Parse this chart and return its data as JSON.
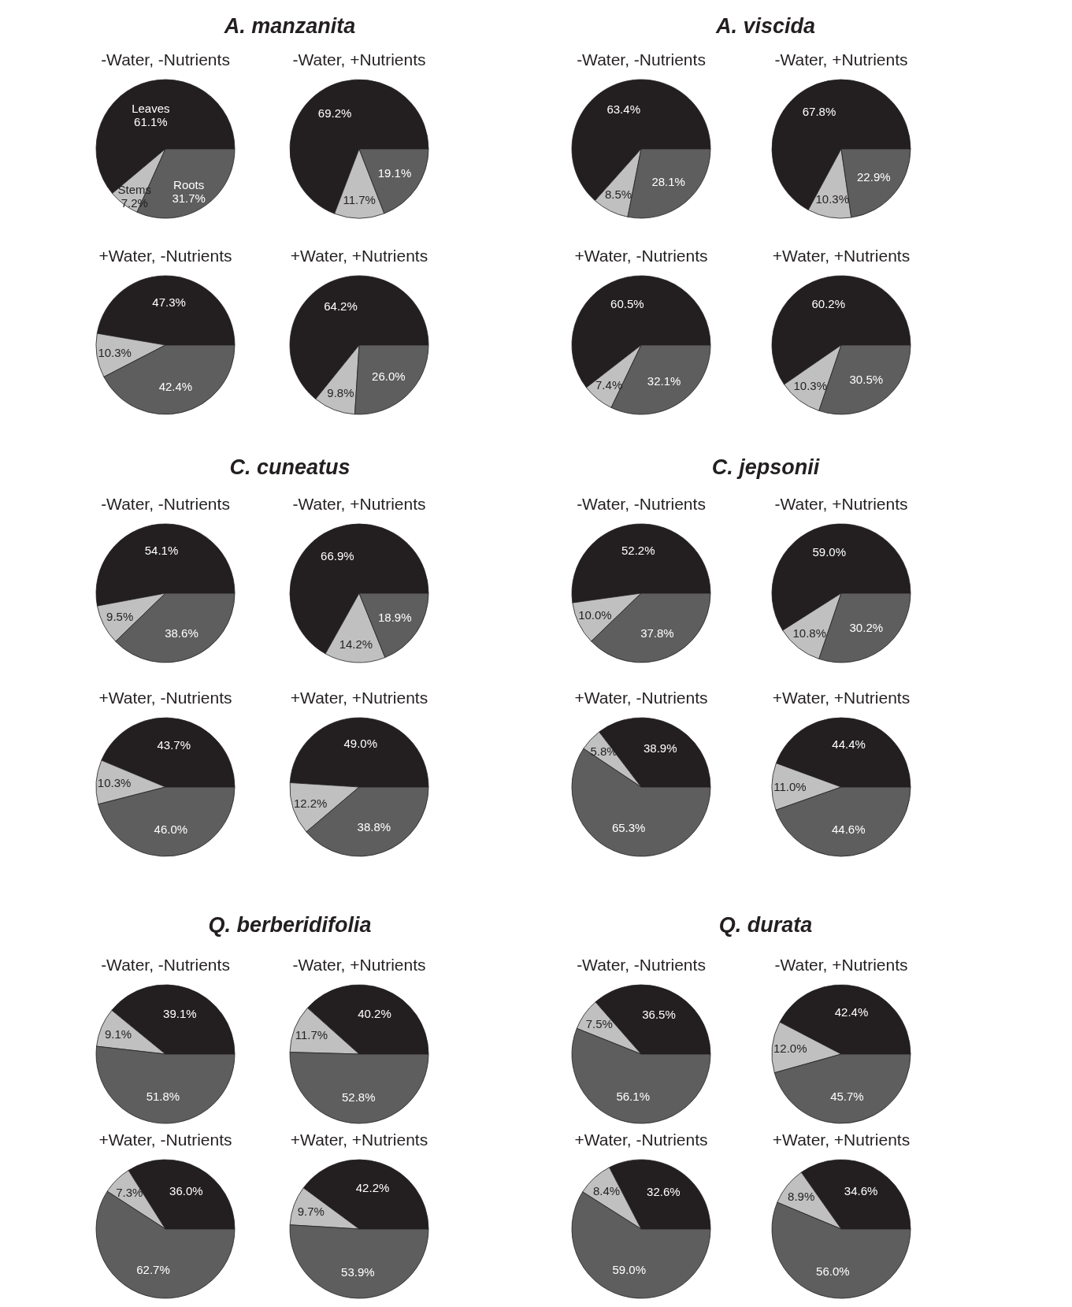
{
  "chart_data": [
    {
      "type": "pie",
      "title": "-Water, -Nutrients",
      "annotations": [
        "A. manzanita"
      ],
      "categories": [
        "Leaves",
        "Stems",
        "Roots"
      ],
      "values": [
        61.1,
        7.2,
        31.7
      ],
      "value_labels": [
        "61.1%",
        "7.2%",
        "31.7%"
      ],
      "colors": [
        "#231f20",
        "#c0c0c0",
        "#5e5e5e"
      ]
    },
    {
      "type": "pie",
      "title": "-Water, +Nutrients",
      "categories": [
        null,
        null,
        null
      ],
      "values": [
        69.2,
        11.7,
        19.1
      ],
      "value_labels": [
        "69.2%",
        "11.7%",
        "19.1%"
      ],
      "colors": [
        "#231f20",
        "#c0c0c0",
        "#5e5e5e"
      ]
    },
    {
      "type": "pie",
      "title": "+Water, -Nutrients",
      "categories": [
        null,
        null,
        null
      ],
      "values": [
        47.3,
        10.3,
        42.4
      ],
      "value_labels": [
        "47.3%",
        "10.3%",
        "42.4%"
      ],
      "colors": [
        "#231f20",
        "#c0c0c0",
        "#5e5e5e"
      ]
    },
    {
      "type": "pie",
      "title": "+Water, +Nutrients",
      "categories": [
        null,
        null,
        null
      ],
      "values": [
        64.2,
        9.8,
        26.0
      ],
      "value_labels": [
        "64.2%",
        "9.8%",
        "26.0%"
      ],
      "colors": [
        "#231f20",
        "#c0c0c0",
        "#5e5e5e"
      ]
    },
    {
      "type": "pie",
      "title": "-Water, -Nutrients",
      "annotations": [
        "A. viscida"
      ],
      "categories": [
        null,
        null,
        null
      ],
      "values": [
        63.4,
        8.5,
        28.1
      ],
      "value_labels": [
        "63.4%",
        "8.5%",
        "28.1%"
      ],
      "colors": [
        "#231f20",
        "#c0c0c0",
        "#5e5e5e"
      ]
    },
    {
      "type": "pie",
      "title": "-Water, +Nutrients",
      "categories": [
        null,
        null,
        null
      ],
      "values": [
        67.8,
        10.3,
        22.9
      ],
      "value_labels": [
        "67.8%",
        "10.3%",
        "22.9%"
      ],
      "colors": [
        "#231f20",
        "#c0c0c0",
        "#5e5e5e"
      ]
    },
    {
      "type": "pie",
      "title": "+Water, -Nutrients",
      "categories": [
        null,
        null,
        null
      ],
      "values": [
        60.5,
        7.4,
        32.1
      ],
      "value_labels": [
        "60.5%",
        "7.4%",
        "32.1%"
      ],
      "colors": [
        "#231f20",
        "#c0c0c0",
        "#5e5e5e"
      ]
    },
    {
      "type": "pie",
      "title": "+Water, +Nutrients",
      "categories": [
        null,
        null,
        null
      ],
      "values": [
        60.2,
        10.3,
        30.5
      ],
      "value_labels": [
        "60.2%",
        "10.3%",
        "30.5%"
      ],
      "colors": [
        "#231f20",
        "#c0c0c0",
        "#5e5e5e"
      ]
    },
    {
      "type": "pie",
      "title": "-Water, -Nutrients",
      "annotations": [
        "C. cuneatus"
      ],
      "categories": [
        null,
        null,
        null
      ],
      "values": [
        54.1,
        9.5,
        38.6
      ],
      "value_labels": [
        "54.1%",
        "9.5%",
        "38.6%"
      ],
      "colors": [
        "#231f20",
        "#c0c0c0",
        "#5e5e5e"
      ]
    },
    {
      "type": "pie",
      "title": "-Water, +Nutrients",
      "categories": [
        null,
        null,
        null
      ],
      "values": [
        66.9,
        14.2,
        18.9
      ],
      "value_labels": [
        "66.9%",
        "14.2%",
        "18.9%"
      ],
      "colors": [
        "#231f20",
        "#c0c0c0",
        "#5e5e5e"
      ]
    },
    {
      "type": "pie",
      "title": "+Water, -Nutrients",
      "categories": [
        null,
        null,
        null
      ],
      "values": [
        43.7,
        10.3,
        46.0
      ],
      "value_labels": [
        "43.7%",
        "10.3%",
        "46.0%"
      ],
      "colors": [
        "#231f20",
        "#c0c0c0",
        "#5e5e5e"
      ]
    },
    {
      "type": "pie",
      "title": "+Water, +Nutrients",
      "categories": [
        null,
        null,
        null
      ],
      "values": [
        49.0,
        12.2,
        38.8
      ],
      "value_labels": [
        "49.0%",
        "12.2%",
        "38.8%"
      ],
      "colors": [
        "#231f20",
        "#c0c0c0",
        "#5e5e5e"
      ]
    },
    {
      "type": "pie",
      "title": "-Water, -Nutrients",
      "annotations": [
        "C. jepsonii"
      ],
      "categories": [
        null,
        null,
        null
      ],
      "values": [
        52.2,
        10.0,
        37.8
      ],
      "value_labels": [
        "52.2%",
        "10.0%",
        "37.8%"
      ],
      "colors": [
        "#231f20",
        "#c0c0c0",
        "#5e5e5e"
      ]
    },
    {
      "type": "pie",
      "title": "-Water, +Nutrients",
      "categories": [
        null,
        null,
        null
      ],
      "values": [
        59.0,
        10.8,
        30.2
      ],
      "value_labels": [
        "59.0%",
        "10.8%",
        "30.2%"
      ],
      "colors": [
        "#231f20",
        "#c0c0c0",
        "#5e5e5e"
      ]
    },
    {
      "type": "pie",
      "title": "+Water, -Nutrients",
      "categories": [
        null,
        null,
        null
      ],
      "values": [
        38.9,
        5.8,
        65.3
      ],
      "value_labels": [
        "38.9%",
        "5.8%",
        "65.3%"
      ],
      "colors": [
        "#231f20",
        "#c0c0c0",
        "#5e5e5e"
      ]
    },
    {
      "type": "pie",
      "title": "+Water, +Nutrients",
      "categories": [
        null,
        null,
        null
      ],
      "values": [
        44.4,
        11.0,
        44.6
      ],
      "value_labels": [
        "44.4%",
        "11.0%",
        "44.6%"
      ],
      "colors": [
        "#231f20",
        "#c0c0c0",
        "#5e5e5e"
      ]
    },
    {
      "type": "pie",
      "title": "-Water, -Nutrients",
      "annotations": [
        "Q. berberidifolia"
      ],
      "categories": [
        null,
        null,
        null
      ],
      "values": [
        39.1,
        9.1,
        51.8
      ],
      "value_labels": [
        "39.1%",
        "9.1%",
        "51.8%"
      ],
      "colors": [
        "#231f20",
        "#c0c0c0",
        "#5e5e5e"
      ]
    },
    {
      "type": "pie",
      "title": "-Water, +Nutrients",
      "categories": [
        null,
        null,
        null
      ],
      "values": [
        40.2,
        11.7,
        52.8
      ],
      "value_labels": [
        "40.2%",
        "11.7%",
        "52.8%"
      ],
      "colors": [
        "#231f20",
        "#c0c0c0",
        "#5e5e5e"
      ]
    },
    {
      "type": "pie",
      "title": "+Water, -Nutrients",
      "categories": [
        null,
        null,
        null
      ],
      "values": [
        36.0,
        7.3,
        62.7
      ],
      "value_labels": [
        "36.0%",
        "7.3%",
        "62.7%"
      ],
      "colors": [
        "#231f20",
        "#c0c0c0",
        "#5e5e5e"
      ]
    },
    {
      "type": "pie",
      "title": "+Water, +Nutrients",
      "categories": [
        null,
        null,
        null
      ],
      "values": [
        42.2,
        9.7,
        53.9
      ],
      "value_labels": [
        "42.2%",
        "9.7%",
        "53.9%"
      ],
      "colors": [
        "#231f20",
        "#c0c0c0",
        "#5e5e5e"
      ]
    },
    {
      "type": "pie",
      "title": "-Water, -Nutrients",
      "annotations": [
        "Q. durata"
      ],
      "categories": [
        null,
        null,
        null
      ],
      "values": [
        36.5,
        7.5,
        56.1
      ],
      "value_labels": [
        "36.5%",
        "7.5%",
        "56.1%"
      ],
      "colors": [
        "#231f20",
        "#c0c0c0",
        "#5e5e5e"
      ]
    },
    {
      "type": "pie",
      "title": "-Water, +Nutrients",
      "categories": [
        null,
        null,
        null
      ],
      "values": [
        42.4,
        12.0,
        45.7
      ],
      "value_labels": [
        "42.4%",
        "12.0%",
        "45.7%"
      ],
      "colors": [
        "#231f20",
        "#c0c0c0",
        "#5e5e5e"
      ]
    },
    {
      "type": "pie",
      "title": "+Water, -Nutrients",
      "categories": [
        null,
        null,
        null
      ],
      "values": [
        32.6,
        8.4,
        59.0
      ],
      "value_labels": [
        "32.6%",
        "8.4%",
        "59.0%"
      ],
      "colors": [
        "#231f20",
        "#c0c0c0",
        "#5e5e5e"
      ]
    },
    {
      "type": "pie",
      "title": "+Water, +Nutrients",
      "categories": [
        null,
        null,
        null
      ],
      "values": [
        34.6,
        8.9,
        56.0
      ],
      "value_labels": [
        "34.6%",
        "8.9%",
        "56.0%"
      ],
      "colors": [
        "#231f20",
        "#c0c0c0",
        "#5e5e5e"
      ]
    }
  ]
}
